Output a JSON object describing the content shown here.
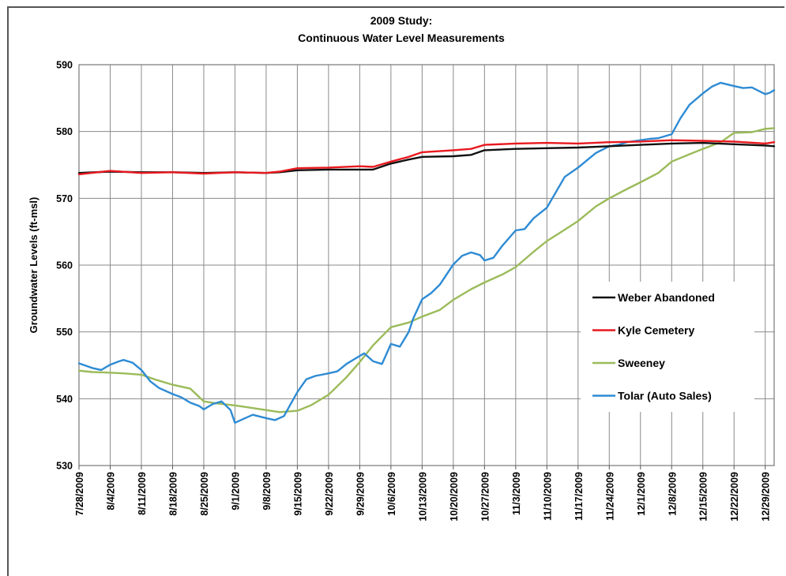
{
  "chart_data": {
    "type": "line",
    "title_line1": "2009 Study:",
    "title_line2": "Continuous Water Level Measurements",
    "xlabel": "",
    "ylabel": "Groundwater Levels (ft-msl)",
    "ylim": [
      530,
      590
    ],
    "yticks": [
      "530",
      "540",
      "550",
      "560",
      "570",
      "580",
      "590"
    ],
    "x_tick_labels": [
      "7/28/2009",
      "8/4/2009",
      "8/11/2009",
      "8/18/2009",
      "8/25/2009",
      "9/1/2009",
      "9/8/2009",
      "9/15/2009",
      "9/22/2009",
      "9/29/2009",
      "10/6/2009",
      "10/13/2009",
      "10/20/2009",
      "10/27/2009",
      "11/3/2009",
      "11/10/2009",
      "11/17/2009",
      "11/24/2009",
      "12/1/2009",
      "12/8/2009",
      "12/15/2009",
      "12/22/2009",
      "12/29/2009"
    ],
    "x_tick_days": [
      0,
      7,
      14,
      21,
      28,
      35,
      42,
      49,
      56,
      63,
      70,
      77,
      84,
      91,
      98,
      105,
      112,
      119,
      126,
      133,
      140,
      147,
      154
    ],
    "x_axis_start": "7/28/2009",
    "xlim_days": [
      0,
      156
    ],
    "grid": true,
    "legend_position": "right",
    "series": [
      {
        "name": "Weber Abandoned",
        "color": "#111111",
        "x": [
          0,
          7,
          14,
          21,
          28,
          35,
          42,
          45,
          49,
          56,
          63,
          66,
          70,
          74,
          77,
          84,
          88,
          91,
          98,
          105,
          112,
          119,
          126,
          133,
          140,
          147,
          154,
          156
        ],
        "values": [
          573.8,
          574.0,
          573.9,
          573.9,
          573.8,
          573.9,
          573.8,
          573.9,
          574.2,
          574.3,
          574.3,
          574.3,
          575.2,
          575.8,
          576.2,
          576.3,
          576.5,
          577.2,
          577.4,
          577.5,
          577.6,
          577.8,
          578.0,
          578.2,
          578.3,
          578.1,
          577.9,
          577.8
        ]
      },
      {
        "name": "Kyle Cemetery",
        "color": "#e8191f",
        "x": [
          0,
          7,
          14,
          21,
          28,
          35,
          42,
          45,
          49,
          56,
          63,
          66,
          70,
          74,
          77,
          84,
          88,
          91,
          98,
          105,
          112,
          119,
          126,
          133,
          140,
          147,
          154,
          156
        ],
        "values": [
          573.6,
          574.1,
          573.8,
          573.9,
          573.7,
          573.9,
          573.8,
          574.0,
          574.5,
          574.6,
          574.8,
          574.7,
          575.5,
          576.2,
          576.9,
          577.2,
          577.4,
          578.0,
          578.2,
          578.3,
          578.2,
          578.4,
          578.5,
          578.7,
          578.6,
          578.5,
          578.2,
          578.4
        ]
      },
      {
        "name": "Sweeney",
        "color": "#9bbb59",
        "x": [
          0,
          3,
          7,
          10,
          14,
          17,
          21,
          25,
          28,
          31,
          35,
          38,
          42,
          45,
          49,
          52,
          56,
          60,
          63,
          66,
          70,
          74,
          77,
          81,
          84,
          88,
          91,
          95,
          98,
          102,
          105,
          109,
          112,
          116,
          119,
          123,
          126,
          130,
          133,
          137,
          140,
          144,
          147,
          151,
          154,
          156
        ],
        "values": [
          544.2,
          544.0,
          543.9,
          543.8,
          543.6,
          542.9,
          542.1,
          541.5,
          539.6,
          539.3,
          539.0,
          538.7,
          538.3,
          538.0,
          538.2,
          539.0,
          540.6,
          543.2,
          545.5,
          548.0,
          550.7,
          551.4,
          552.3,
          553.3,
          554.8,
          556.4,
          557.4,
          558.6,
          559.7,
          562.0,
          563.6,
          565.3,
          566.6,
          568.8,
          570.0,
          571.4,
          572.4,
          573.8,
          575.5,
          576.6,
          577.4,
          578.4,
          579.8,
          579.9,
          580.4,
          580.5
        ]
      },
      {
        "name": "Tolar (Auto Sales)",
        "color": "#2e8bd4",
        "x": [
          0,
          3,
          5,
          7,
          9,
          10,
          12,
          14,
          16,
          18,
          21,
          23,
          25,
          27,
          28,
          30,
          32,
          34,
          35,
          37,
          39,
          42,
          44,
          46,
          49,
          51,
          53,
          56,
          58,
          60,
          62,
          64,
          66,
          68,
          70,
          72,
          74,
          75,
          77,
          79,
          81,
          84,
          86,
          88,
          90,
          91,
          93,
          95,
          98,
          100,
          102,
          105,
          107,
          109,
          112,
          114,
          116,
          119,
          121,
          123,
          126,
          128,
          130,
          133,
          135,
          137,
          140,
          142,
          144,
          147,
          149,
          151,
          154,
          155,
          156
        ],
        "values": [
          545.3,
          544.6,
          544.3,
          545.1,
          545.6,
          545.8,
          545.4,
          544.3,
          542.6,
          541.6,
          540.7,
          540.2,
          539.4,
          538.9,
          538.4,
          539.2,
          539.6,
          538.3,
          536.4,
          537.0,
          537.6,
          537.1,
          536.8,
          537.4,
          541.0,
          542.9,
          543.4,
          543.8,
          544.1,
          545.2,
          546.0,
          546.8,
          545.6,
          545.2,
          548.2,
          547.8,
          550.0,
          552.0,
          554.9,
          555.8,
          557.1,
          560.1,
          561.4,
          561.9,
          561.5,
          560.7,
          561.1,
          562.9,
          565.2,
          565.4,
          567.0,
          568.6,
          570.9,
          573.2,
          574.6,
          575.7,
          576.8,
          577.8,
          578.0,
          578.4,
          578.7,
          578.9,
          579.0,
          579.6,
          582.0,
          584.0,
          585.7,
          586.7,
          587.3,
          586.8,
          586.5,
          586.6,
          585.6,
          585.8,
          586.2
        ]
      }
    ]
  }
}
